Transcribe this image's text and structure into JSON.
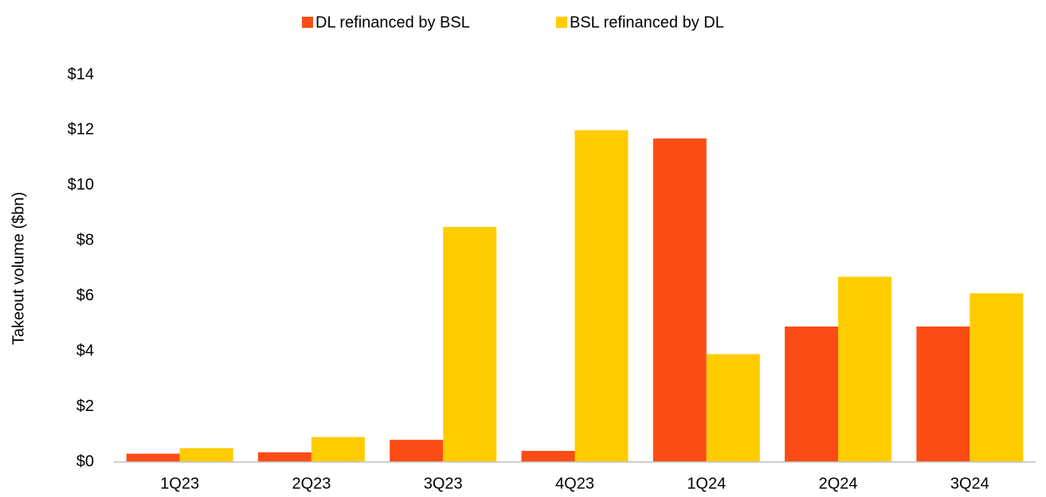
{
  "chart_data": {
    "type": "bar",
    "y_label": "Takeout volume ($bn)",
    "categories": [
      "1Q23",
      "2Q23",
      "3Q23",
      "4Q23",
      "1Q24",
      "2Q24",
      "3Q24"
    ],
    "series": [
      {
        "name": "DL refinanced by BSL",
        "color": "#fc4c15",
        "values": [
          0.3,
          0.35,
          0.8,
          0.4,
          11.7,
          4.9,
          4.9
        ]
      },
      {
        "name": "BSL refinanced by DL",
        "color": "#ffcc00",
        "values": [
          0.5,
          0.9,
          8.5,
          12.0,
          3.9,
          6.7,
          6.1
        ]
      }
    ],
    "ylim": [
      0,
      14
    ],
    "yticks": [
      {
        "value": 0,
        "label": "$0"
      },
      {
        "value": 2,
        "label": "$2"
      },
      {
        "value": 4,
        "label": "$4"
      },
      {
        "value": 6,
        "label": "$6"
      },
      {
        "value": 8,
        "label": "$8"
      },
      {
        "value": 10,
        "label": "$10"
      },
      {
        "value": 12,
        "label": "$12"
      },
      {
        "value": 14,
        "label": "$14"
      }
    ],
    "legend": "top"
  }
}
